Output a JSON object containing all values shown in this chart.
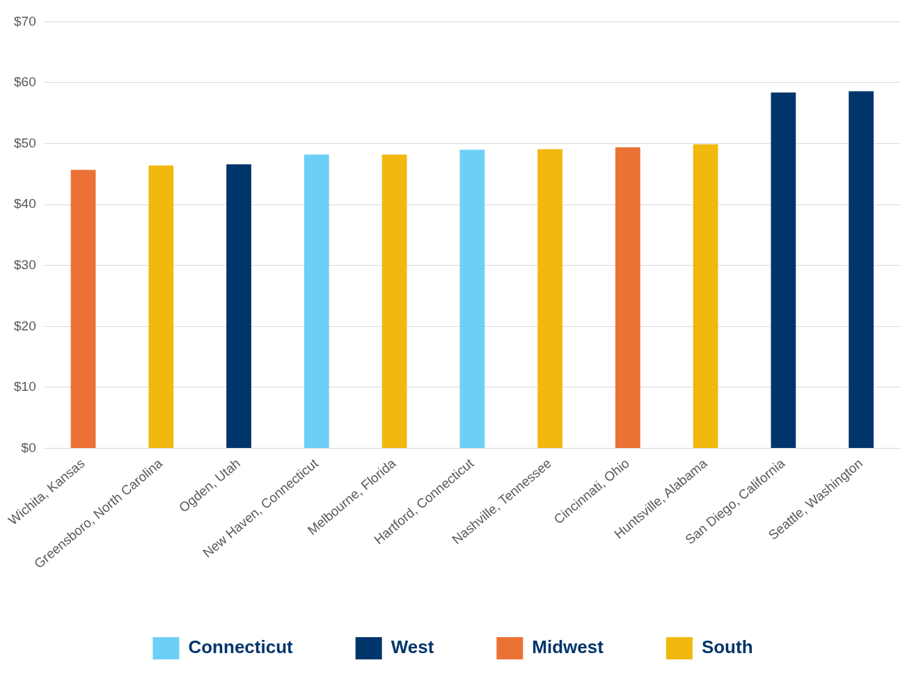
{
  "chart_data": {
    "type": "bar",
    "categories": [
      "Wichita, Kansas",
      "Greensboro, North Carolina",
      "Ogden, Utah",
      "New Haven, Connecticut",
      "Melbourne, Florida",
      "Hartford, Connecticut",
      "Nashville, Tennessee",
      "Cincinnati, Ohio",
      "Huntsville, Alabama",
      "San Diego, California",
      "Seattle, Washington"
    ],
    "series": [
      {
        "name": "Connecticut",
        "color": "#6dcff6",
        "values": [
          null,
          null,
          null,
          48.2,
          null,
          49.0,
          null,
          null,
          null,
          null,
          null
        ]
      },
      {
        "name": "West",
        "color": "#00356b",
        "values": [
          null,
          null,
          46.6,
          null,
          null,
          null,
          null,
          null,
          null,
          58.4,
          58.6
        ]
      },
      {
        "name": "Midwest",
        "color": "#eb7134",
        "values": [
          45.7,
          null,
          null,
          null,
          null,
          null,
          null,
          49.4,
          null,
          null,
          null
        ]
      },
      {
        "name": "South",
        "color": "#f1b80e",
        "values": [
          null,
          46.4,
          null,
          null,
          48.2,
          null,
          49.1,
          null,
          49.9,
          null,
          null
        ]
      }
    ],
    "ylim": [
      0,
      70
    ],
    "yticks": [
      {
        "value": 0,
        "label": "$0"
      },
      {
        "value": 10,
        "label": "$10"
      },
      {
        "value": 20,
        "label": "$20"
      },
      {
        "value": 30,
        "label": "$30"
      },
      {
        "value": 40,
        "label": "$40"
      },
      {
        "value": 50,
        "label": "$50"
      },
      {
        "value": 60,
        "label": "$60"
      },
      {
        "value": 70,
        "label": "$70"
      }
    ],
    "grid": "y",
    "legend": "bottom"
  }
}
